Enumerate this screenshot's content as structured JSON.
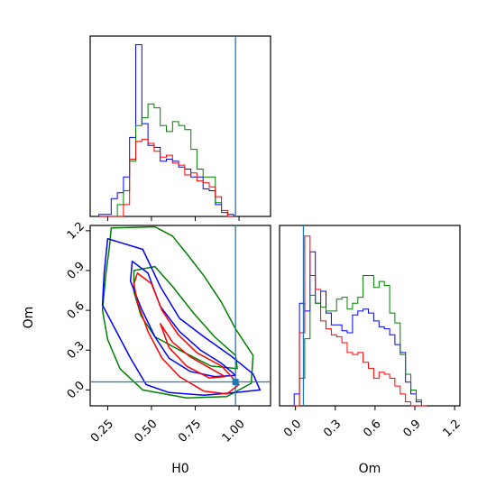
{
  "chart_data": {
    "type": "corner",
    "parameters": [
      "H0",
      "Om"
    ],
    "truth": {
      "H0": 0.98,
      "Om": 0.06
    },
    "colors": {
      "blue": "#0000ff",
      "green": "#008000",
      "red": "#ff0000",
      "truth": "#1f77b4"
    },
    "x_ticks": {
      "H0": [
        "0.25",
        "0.50",
        "0.75",
        "1.00"
      ],
      "Om": [
        "0.0",
        "0.3",
        "0.6",
        "0.9",
        "1.2"
      ]
    },
    "y_ticks": {
      "Om": [
        "0.0",
        "0.3",
        "0.6",
        "0.9",
        "1.2"
      ]
    },
    "xlabels": {
      "H0": "H0",
      "Om": "Om"
    },
    "ylabel": "Om",
    "ranges": {
      "H0": [
        0.15,
        1.18
      ],
      "Om": [
        -0.12,
        1.24
      ]
    },
    "hist_H0": {
      "edges_start": 0.2,
      "bin_width": 0.035,
      "series": [
        {
          "color": "blue",
          "values": [
            0.01,
            0.01,
            0.09,
            0.12,
            0.2,
            0.4,
            0.87,
            0.47,
            0.36,
            0.35,
            0.28,
            0.29,
            0.28,
            0.25,
            0.24,
            0.2,
            0.2,
            0.14,
            0.13,
            0.06,
            0.02,
            0.01
          ]
        },
        {
          "color": "green",
          "values": [
            0,
            0,
            0,
            0.06,
            0.13,
            0.28,
            0.46,
            0.5,
            0.57,
            0.55,
            0.46,
            0.43,
            0.48,
            0.46,
            0.44,
            0.34,
            0.24,
            0.2,
            0.2,
            0.07,
            0.02,
            0
          ]
        },
        {
          "color": "red",
          "values": [
            0,
            0,
            0,
            0,
            0.06,
            0.29,
            0.38,
            0.39,
            0.37,
            0.33,
            0.3,
            0.31,
            0.27,
            0.26,
            0.21,
            0.22,
            0.18,
            0.17,
            0.15,
            0.1,
            0.03,
            0
          ]
        }
      ]
    },
    "hist_Om": {
      "edges_start": -0.01,
      "bin_width": 0.04,
      "series": [
        {
          "color": "blue",
          "values": [
            0.06,
            0.52,
            0.48,
            0.78,
            0.52,
            0.58,
            0.47,
            0.41,
            0.41,
            0.38,
            0.37,
            0.46,
            0.48,
            0.49,
            0.47,
            0.43,
            0.4,
            0.39,
            0.36,
            0.31,
            0.27,
            0.12,
            0.06,
            0.02,
            0
          ]
        },
        {
          "color": "green",
          "values": [
            0,
            0.14,
            0.34,
            0.56,
            0.52,
            0.5,
            0.48,
            0.48,
            0.54,
            0.55,
            0.49,
            0.52,
            0.55,
            0.66,
            0.66,
            0.6,
            0.63,
            0.61,
            0.47,
            0.42,
            0.26,
            0.16,
            0.08,
            0.03,
            0
          ]
        },
        {
          "color": "red",
          "values": [
            0,
            0.37,
            0.86,
            0.66,
            0.59,
            0.43,
            0.39,
            0.36,
            0.35,
            0.32,
            0.27,
            0.26,
            0.27,
            0.22,
            0.19,
            0.14,
            0.17,
            0.16,
            0.14,
            0.1,
            0.06,
            0.02,
            0,
            0,
            0
          ]
        }
      ]
    },
    "contours": [
      {
        "color": "green",
        "points": [
          [
            0.27,
            1.22
          ],
          [
            0.52,
            1.23
          ],
          [
            0.62,
            1.16
          ],
          [
            0.7,
            1.03
          ],
          [
            0.8,
            0.86
          ],
          [
            0.9,
            0.66
          ],
          [
            0.98,
            0.46
          ],
          [
            1.08,
            0.26
          ],
          [
            1.07,
            0.05
          ],
          [
            0.93,
            -0.05
          ],
          [
            0.7,
            -0.06
          ],
          [
            0.45,
            0.0
          ],
          [
            0.32,
            0.16
          ],
          [
            0.25,
            0.38
          ],
          [
            0.22,
            0.6
          ],
          [
            0.24,
            0.88
          ],
          [
            0.26,
            1.08
          ]
        ]
      },
      {
        "color": "green",
        "points": [
          [
            0.4,
            0.9
          ],
          [
            0.52,
            0.93
          ],
          [
            0.62,
            0.78
          ],
          [
            0.74,
            0.58
          ],
          [
            0.86,
            0.4
          ],
          [
            0.98,
            0.26
          ],
          [
            0.99,
            0.16
          ],
          [
            0.84,
            0.18
          ],
          [
            0.66,
            0.3
          ],
          [
            0.52,
            0.4
          ],
          [
            0.44,
            0.56
          ],
          [
            0.4,
            0.74
          ]
        ]
      },
      {
        "color": "blue",
        "points": [
          [
            0.25,
            1.14
          ],
          [
            0.45,
            1.06
          ],
          [
            0.55,
            0.78
          ],
          [
            0.66,
            0.54
          ],
          [
            0.8,
            0.4
          ],
          [
            0.95,
            0.26
          ],
          [
            1.08,
            0.12
          ],
          [
            1.12,
            0.0
          ],
          [
            0.98,
            -0.02
          ],
          [
            0.8,
            -0.04
          ],
          [
            0.6,
            -0.02
          ],
          [
            0.47,
            0.04
          ],
          [
            0.38,
            0.24
          ],
          [
            0.3,
            0.44
          ],
          [
            0.22,
            0.64
          ],
          [
            0.23,
            0.88
          ]
        ]
      },
      {
        "color": "blue",
        "points": [
          [
            0.39,
            0.97
          ],
          [
            0.48,
            0.88
          ],
          [
            0.55,
            0.63
          ],
          [
            0.66,
            0.44
          ],
          [
            0.78,
            0.3
          ],
          [
            0.9,
            0.2
          ],
          [
            0.98,
            0.11
          ],
          [
            0.86,
            0.1
          ],
          [
            0.72,
            0.14
          ],
          [
            0.6,
            0.24
          ],
          [
            0.52,
            0.4
          ],
          [
            0.44,
            0.62
          ],
          [
            0.38,
            0.82
          ]
        ]
      },
      {
        "color": "red",
        "points": [
          [
            0.42,
            0.88
          ],
          [
            0.5,
            0.8
          ],
          [
            0.56,
            0.6
          ],
          [
            0.65,
            0.42
          ],
          [
            0.76,
            0.28
          ],
          [
            0.9,
            0.18
          ],
          [
            1.0,
            0.04
          ],
          [
            0.93,
            -0.03
          ],
          [
            0.8,
            -0.01
          ],
          [
            0.66,
            0.1
          ],
          [
            0.56,
            0.24
          ],
          [
            0.48,
            0.44
          ],
          [
            0.42,
            0.66
          ],
          [
            0.4,
            0.8
          ]
        ]
      },
      {
        "color": "red",
        "points": [
          [
            0.55,
            0.5
          ],
          [
            0.62,
            0.36
          ],
          [
            0.72,
            0.25
          ],
          [
            0.84,
            0.16
          ],
          [
            0.92,
            0.1
          ],
          [
            0.83,
            0.09
          ],
          [
            0.7,
            0.18
          ],
          [
            0.6,
            0.32
          ]
        ]
      }
    ]
  }
}
